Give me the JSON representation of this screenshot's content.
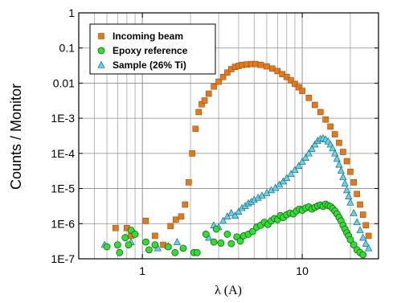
{
  "chart_data": {
    "type": "scatter",
    "xlabel": "λ (A)",
    "ylabel": "Counts / Monitor",
    "x_scale": "log",
    "y_scale": "log",
    "xlim": [
      0.4,
      30
    ],
    "ylim": [
      1e-07,
      1
    ],
    "x_ticks": [
      {
        "value": 1,
        "label": "1"
      },
      {
        "value": 10,
        "label": "10"
      }
    ],
    "y_ticks": [
      {
        "value": 1,
        "label": "1"
      },
      {
        "value": 0.1,
        "label": "0.1"
      },
      {
        "value": 0.01,
        "label": "0.01"
      },
      {
        "value": 0.001,
        "label": "1E-3"
      },
      {
        "value": 0.0001,
        "label": "1E-4"
      },
      {
        "value": 1e-05,
        "label": "1E-5"
      },
      {
        "value": 1e-06,
        "label": "1E-6"
      },
      {
        "value": 1e-07,
        "label": "1E-7"
      }
    ],
    "grid": true,
    "legend_position": "top-left",
    "series": [
      {
        "name": "Incoming beam",
        "marker": "square",
        "color": "#e07a1f",
        "stroke": "#a04d08",
        "points": [
          [
            0.68,
            7.5e-07
          ],
          [
            0.8,
            7.5e-07
          ],
          [
            0.85,
            4.5e-07
          ],
          [
            1.05,
            1.2e-06
          ],
          [
            1.2,
            4.5e-07
          ],
          [
            1.35,
            2.5e-07
          ],
          [
            1.5,
            8.5e-07
          ],
          [
            1.62,
            1.3e-06
          ],
          [
            1.75,
            1.6e-06
          ],
          [
            1.85,
            3.5e-06
          ],
          [
            1.95,
            1.5e-05
          ],
          [
            2.05,
            0.0001
          ],
          [
            2.15,
            0.0005
          ],
          [
            2.25,
            0.0015
          ],
          [
            2.35,
            0.0025
          ],
          [
            2.45,
            0.0032
          ],
          [
            2.6,
            0.005
          ],
          [
            2.8,
            0.008
          ],
          [
            3.0,
            0.011
          ],
          [
            3.2,
            0.015
          ],
          [
            3.4,
            0.02
          ],
          [
            3.6,
            0.025
          ],
          [
            3.8,
            0.029
          ],
          [
            4.0,
            0.031
          ],
          [
            4.2,
            0.033
          ],
          [
            4.5,
            0.034
          ],
          [
            4.8,
            0.035
          ],
          [
            5.1,
            0.035
          ],
          [
            5.5,
            0.033
          ],
          [
            6.0,
            0.03
          ],
          [
            6.5,
            0.026
          ],
          [
            7.0,
            0.022
          ],
          [
            7.5,
            0.018
          ],
          [
            8.0,
            0.015
          ],
          [
            8.5,
            0.012
          ],
          [
            9.0,
            0.0095
          ],
          [
            9.5,
            0.0076
          ],
          [
            10.0,
            0.006
          ],
          [
            11.0,
            0.0038
          ],
          [
            12.0,
            0.0024
          ],
          [
            13.0,
            0.0015
          ],
          [
            14.0,
            0.00092
          ],
          [
            15.0,
            0.00058
          ],
          [
            16.0,
            0.00035
          ],
          [
            17.0,
            0.0002
          ],
          [
            18.0,
            0.00011
          ],
          [
            19.0,
            6e-05
          ],
          [
            20.0,
            3e-05
          ],
          [
            21.0,
            1.5e-05
          ],
          [
            22.0,
            7e-06
          ],
          [
            23.0,
            3.5e-06
          ],
          [
            24.0,
            1.8e-06
          ],
          [
            25.0,
            9e-07
          ],
          [
            26.0,
            4.5e-07
          ]
        ]
      },
      {
        "name": "Epoxy reference",
        "marker": "circle",
        "color": "#33dd33",
        "stroke": "#116611",
        "points": [
          [
            0.6,
            2.2e-07
          ],
          [
            0.7,
            2.5e-07
          ],
          [
            0.72,
            1.5e-07
          ],
          [
            0.78,
            4e-07
          ],
          [
            0.82,
            2.5e-07
          ],
          [
            0.85,
            6.5e-07
          ],
          [
            0.9,
            5e-07
          ],
          [
            1.05,
            3e-07
          ],
          [
            1.1,
            1.8e-07
          ],
          [
            1.2,
            2.5e-07
          ],
          [
            1.45,
            2.2e-07
          ],
          [
            1.6,
            1.5e-07
          ],
          [
            1.8,
            2e-07
          ],
          [
            2.1,
            1.5e-07
          ],
          [
            2.2,
            1.5e-07
          ],
          [
            2.5,
            5e-07
          ],
          [
            2.8,
            3e-07
          ],
          [
            2.9,
            7e-07
          ],
          [
            3.1,
            2.8e-07
          ],
          [
            3.4,
            5e-07
          ],
          [
            3.6,
            2.7e-07
          ],
          [
            3.9,
            4.2e-07
          ],
          [
            4.1,
            3.2e-07
          ],
          [
            4.3,
            4.5e-07
          ],
          [
            4.6,
            5e-07
          ],
          [
            4.9,
            6e-07
          ],
          [
            5.2,
            8e-07
          ],
          [
            5.5,
            9e-07
          ],
          [
            5.8,
            1.1e-06
          ],
          [
            6.1,
            9.5e-07
          ],
          [
            6.4,
            1.2e-06
          ],
          [
            6.7,
            1.4e-06
          ],
          [
            7.0,
            1.3e-06
          ],
          [
            7.3,
            1.7e-06
          ],
          [
            7.6,
            1.5e-06
          ],
          [
            8.0,
            1.8e-06
          ],
          [
            8.4,
            2e-06
          ],
          [
            8.8,
            1.9e-06
          ],
          [
            9.2,
            2.3e-06
          ],
          [
            9.6,
            2.6e-06
          ],
          [
            10.0,
            2.4e-06
          ],
          [
            10.5,
            2.8e-06
          ],
          [
            11.0,
            3e-06
          ],
          [
            11.5,
            2.6e-06
          ],
          [
            12.0,
            2.9e-06
          ],
          [
            12.5,
            3.2e-06
          ],
          [
            13.0,
            3.4e-06
          ],
          [
            13.5,
            3.1e-06
          ],
          [
            14.0,
            3.6e-06
          ],
          [
            14.5,
            3.3e-06
          ],
          [
            15.0,
            3.1e-06
          ],
          [
            15.5,
            2.7e-06
          ],
          [
            16.0,
            2.3e-06
          ],
          [
            16.5,
            1.9e-06
          ],
          [
            17.0,
            1.5e-06
          ],
          [
            17.5,
            1.2e-06
          ],
          [
            18.0,
            9e-07
          ],
          [
            18.5,
            7e-07
          ],
          [
            19.0,
            5.5e-07
          ],
          [
            19.5,
            4.5e-07
          ],
          [
            20.0,
            3.5e-07
          ],
          [
            21.0,
            2.5e-07
          ],
          [
            22.0,
            1.8e-07
          ],
          [
            23.0,
            1.5e-07
          ],
          [
            24.0,
            1.3e-07
          ]
        ]
      },
      {
        "name": "Sample (26% Ti)",
        "marker": "triangle",
        "color": "#66d4e8",
        "stroke": "#1a6a80",
        "points": [
          [
            0.58,
            2.5e-07
          ],
          [
            0.85,
            3e-07
          ],
          [
            1.25,
            2e-07
          ],
          [
            1.45,
            2.3e-07
          ],
          [
            1.65,
            3e-07
          ],
          [
            2.6,
            4e-07
          ],
          [
            2.8,
            9e-07
          ],
          [
            3.0,
            8e-07
          ],
          [
            3.2,
            1.2e-06
          ],
          [
            3.4,
            1.6e-06
          ],
          [
            3.6,
            2e-06
          ],
          [
            3.8,
            1.7e-06
          ],
          [
            4.0,
            2.2e-06
          ],
          [
            4.2,
            2.8e-06
          ],
          [
            4.4,
            3.2e-06
          ],
          [
            4.6,
            3.8e-06
          ],
          [
            4.8,
            4.2e-06
          ],
          [
            5.0,
            4.8e-06
          ],
          [
            5.3,
            5.5e-06
          ],
          [
            5.6,
            6.3e-06
          ],
          [
            6.0,
            7.5e-06
          ],
          [
            6.4,
            9e-06
          ],
          [
            6.8,
            1.05e-05
          ],
          [
            7.2,
            1.3e-05
          ],
          [
            7.6,
            1.6e-05
          ],
          [
            8.0,
            2e-05
          ],
          [
            8.5,
            2.6e-05
          ],
          [
            9.0,
            3.4e-05
          ],
          [
            9.5,
            4.4e-05
          ],
          [
            10.0,
            5.8e-05
          ],
          [
            10.5,
            7.5e-05
          ],
          [
            11.0,
            0.0001
          ],
          [
            11.5,
            0.000135
          ],
          [
            12.0,
            0.00018
          ],
          [
            12.5,
            0.00023
          ],
          [
            13.0,
            0.00026
          ],
          [
            13.5,
            0.00027
          ],
          [
            14.0,
            0.00025
          ],
          [
            14.5,
            0.00022
          ],
          [
            15.0,
            0.00018
          ],
          [
            15.5,
            0.00014
          ],
          [
            16.0,
            0.0001
          ],
          [
            16.5,
            7e-05
          ],
          [
            17.0,
            4.8e-05
          ],
          [
            17.5,
            3.2e-05
          ],
          [
            18.0,
            2.1e-05
          ],
          [
            18.5,
            1.4e-05
          ],
          [
            19.0,
            9e-06
          ],
          [
            19.5,
            6e-06
          ],
          [
            20.0,
            4e-06
          ],
          [
            21.0,
            2e-06
          ],
          [
            22.0,
            1.1e-06
          ],
          [
            23.0,
            6.5e-07
          ],
          [
            24.0,
            4e-07
          ],
          [
            25.0,
            2.7e-07
          ],
          [
            26.0,
            2e-07
          ]
        ]
      }
    ]
  }
}
